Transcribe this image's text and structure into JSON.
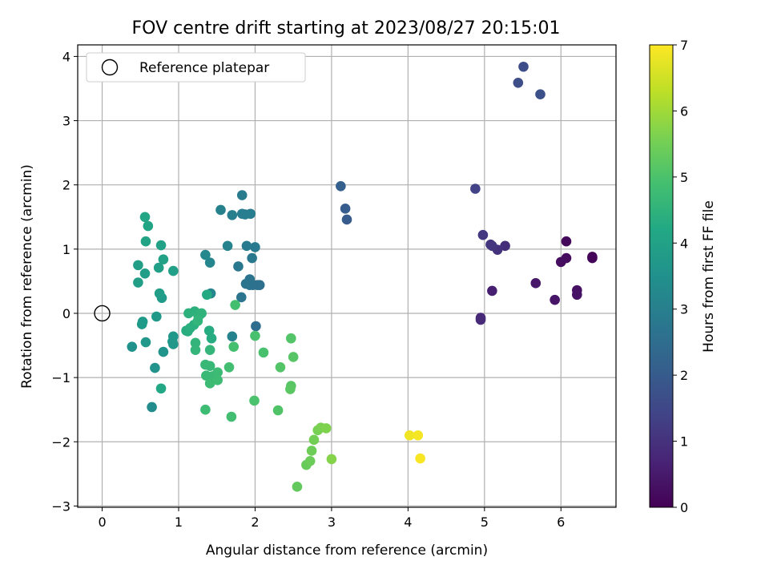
{
  "chart_data": {
    "type": "scatter",
    "title": "FOV centre drift starting at 2023/08/27 20:15:01",
    "xlabel": "Angular distance from reference (arcmin)",
    "ylabel": "Rotation from reference (arcmin)",
    "xlim": [
      -0.32,
      6.72
    ],
    "ylim": [
      -3.02,
      4.18
    ],
    "xticks": [
      0,
      1,
      2,
      3,
      4,
      5,
      6
    ],
    "yticks": [
      -3,
      -2,
      -1,
      0,
      1,
      2,
      3,
      4
    ],
    "grid": true,
    "colormap": "viridis",
    "colorbar": {
      "label": "Hours from first FF file",
      "range": [
        0,
        7
      ],
      "ticks": [
        0,
        1,
        2,
        3,
        4,
        5,
        6,
        7
      ]
    },
    "legend": {
      "position": "top-left",
      "entries": [
        "Reference platepar"
      ]
    },
    "reference_point": {
      "x": 0,
      "y": 0
    },
    "points": [
      {
        "x": 6.41,
        "y": 0.88,
        "hours": 0.05
      },
      {
        "x": 6.41,
        "y": 0.86,
        "hours": 0.1
      },
      {
        "x": 6.07,
        "y": 1.12,
        "hours": 0.15
      },
      {
        "x": 6.07,
        "y": 0.86,
        "hours": 0.2
      },
      {
        "x": 6.0,
        "y": 0.8,
        "hours": 0.25
      },
      {
        "x": 6.21,
        "y": 0.36,
        "hours": 0.3
      },
      {
        "x": 6.21,
        "y": 0.29,
        "hours": 0.35
      },
      {
        "x": 5.92,
        "y": 0.21,
        "hours": 0.4
      },
      {
        "x": 5.67,
        "y": 0.47,
        "hours": 0.45
      },
      {
        "x": 5.1,
        "y": 0.35,
        "hours": 0.6
      },
      {
        "x": 4.95,
        "y": -0.07,
        "hours": 0.8
      },
      {
        "x": 4.95,
        "y": -0.1,
        "hours": 0.85
      },
      {
        "x": 5.27,
        "y": 1.05,
        "hours": 0.9
      },
      {
        "x": 5.17,
        "y": 0.99,
        "hours": 1.0
      },
      {
        "x": 5.08,
        "y": 1.07,
        "hours": 1.05
      },
      {
        "x": 5.1,
        "y": 1.05,
        "hours": 1.1
      },
      {
        "x": 4.98,
        "y": 1.22,
        "hours": 1.15
      },
      {
        "x": 4.88,
        "y": 1.94,
        "hours": 1.35
      },
      {
        "x": 5.51,
        "y": 3.84,
        "hours": 1.6
      },
      {
        "x": 5.44,
        "y": 3.59,
        "hours": 1.65
      },
      {
        "x": 5.73,
        "y": 3.41,
        "hours": 1.7
      },
      {
        "x": 3.2,
        "y": 1.46,
        "hours": 2.0
      },
      {
        "x": 3.18,
        "y": 1.63,
        "hours": 2.05
      },
      {
        "x": 3.12,
        "y": 1.98,
        "hours": 2.1
      },
      {
        "x": 2.01,
        "y": -0.2,
        "hours": 2.5
      },
      {
        "x": 2.06,
        "y": 0.44,
        "hours": 2.55
      },
      {
        "x": 2.03,
        "y": 0.44,
        "hours": 2.6
      },
      {
        "x": 1.93,
        "y": 0.44,
        "hours": 2.65
      },
      {
        "x": 1.97,
        "y": 0.44,
        "hours": 2.6
      },
      {
        "x": 1.93,
        "y": 0.53,
        "hours": 2.7
      },
      {
        "x": 1.88,
        "y": 0.46,
        "hours": 2.7
      },
      {
        "x": 1.82,
        "y": 0.25,
        "hours": 2.75
      },
      {
        "x": 1.78,
        "y": 0.73,
        "hours": 2.8
      },
      {
        "x": 1.96,
        "y": 0.86,
        "hours": 2.8
      },
      {
        "x": 2.0,
        "y": 1.03,
        "hours": 2.85
      },
      {
        "x": 1.89,
        "y": 1.05,
        "hours": 2.85
      },
      {
        "x": 1.83,
        "y": 1.84,
        "hours": 2.9
      },
      {
        "x": 1.87,
        "y": 1.54,
        "hours": 2.9
      },
      {
        "x": 1.94,
        "y": 1.55,
        "hours": 2.95
      },
      {
        "x": 1.83,
        "y": 1.55,
        "hours": 2.95
      },
      {
        "x": 1.7,
        "y": 1.53,
        "hours": 3.0
      },
      {
        "x": 1.55,
        "y": 1.61,
        "hours": 3.05
      },
      {
        "x": 1.64,
        "y": 1.05,
        "hours": 3.1
      },
      {
        "x": 1.7,
        "y": -0.36,
        "hours": 3.1
      },
      {
        "x": 1.42,
        "y": 0.31,
        "hours": 3.15
      },
      {
        "x": 1.41,
        "y": 0.79,
        "hours": 3.2
      },
      {
        "x": 1.35,
        "y": 0.91,
        "hours": 3.25
      },
      {
        "x": 0.65,
        "y": -1.46,
        "hours": 3.4
      },
      {
        "x": 0.39,
        "y": -0.52,
        "hours": 3.5
      },
      {
        "x": 0.69,
        "y": -0.85,
        "hours": 3.55
      },
      {
        "x": 0.8,
        "y": -0.6,
        "hours": 3.6
      },
      {
        "x": 0.92,
        "y": -0.44,
        "hours": 3.65
      },
      {
        "x": 0.93,
        "y": -0.36,
        "hours": 3.65
      },
      {
        "x": 0.93,
        "y": -0.48,
        "hours": 3.7
      },
      {
        "x": 0.57,
        "y": -0.45,
        "hours": 3.7
      },
      {
        "x": 0.71,
        "y": -0.05,
        "hours": 3.75
      },
      {
        "x": 0.53,
        "y": -0.13,
        "hours": 3.75
      },
      {
        "x": 0.52,
        "y": -0.17,
        "hours": 3.8
      },
      {
        "x": 0.78,
        "y": 0.24,
        "hours": 3.8
      },
      {
        "x": 0.75,
        "y": 0.31,
        "hours": 3.85
      },
      {
        "x": 0.56,
        "y": 0.62,
        "hours": 3.85
      },
      {
        "x": 0.47,
        "y": 0.48,
        "hours": 3.9
      },
      {
        "x": 0.47,
        "y": 0.75,
        "hours": 3.9
      },
      {
        "x": 0.74,
        "y": 0.71,
        "hours": 3.95
      },
      {
        "x": 0.93,
        "y": 0.66,
        "hours": 3.95
      },
      {
        "x": 0.8,
        "y": 0.84,
        "hours": 4.0
      },
      {
        "x": 0.77,
        "y": 1.06,
        "hours": 4.0
      },
      {
        "x": 0.57,
        "y": 1.12,
        "hours": 4.05
      },
      {
        "x": 0.6,
        "y": 1.36,
        "hours": 4.1
      },
      {
        "x": 0.56,
        "y": 1.5,
        "hours": 4.15
      },
      {
        "x": 0.77,
        "y": -1.17,
        "hours": 4.2
      },
      {
        "x": 1.37,
        "y": 0.29,
        "hours": 4.25
      },
      {
        "x": 1.4,
        "y": -0.27,
        "hours": 4.3
      },
      {
        "x": 1.43,
        "y": -0.39,
        "hours": 4.3
      },
      {
        "x": 1.1,
        "y": -0.27,
        "hours": 4.35
      },
      {
        "x": 1.12,
        "y": -0.28,
        "hours": 4.35
      },
      {
        "x": 1.2,
        "y": -0.18,
        "hours": 4.4
      },
      {
        "x": 1.15,
        "y": -0.23,
        "hours": 4.4
      },
      {
        "x": 1.13,
        "y": 0.0,
        "hours": 4.45
      },
      {
        "x": 1.21,
        "y": 0.03,
        "hours": 4.45
      },
      {
        "x": 1.26,
        "y": -0.05,
        "hours": 4.5
      },
      {
        "x": 1.3,
        "y": 0.0,
        "hours": 4.5
      },
      {
        "x": 1.25,
        "y": -0.12,
        "hours": 4.55
      },
      {
        "x": 1.22,
        "y": -0.46,
        "hours": 4.55
      },
      {
        "x": 1.22,
        "y": -0.57,
        "hours": 4.6
      },
      {
        "x": 1.41,
        "y": -0.57,
        "hours": 4.6
      },
      {
        "x": 1.35,
        "y": -0.8,
        "hours": 4.65
      },
      {
        "x": 1.41,
        "y": -0.82,
        "hours": 4.65
      },
      {
        "x": 1.36,
        "y": -0.97,
        "hours": 4.7
      },
      {
        "x": 1.44,
        "y": -0.98,
        "hours": 4.7
      },
      {
        "x": 1.41,
        "y": -1.09,
        "hours": 4.75
      },
      {
        "x": 1.51,
        "y": -0.92,
        "hours": 4.75
      },
      {
        "x": 1.51,
        "y": -1.04,
        "hours": 4.8
      },
      {
        "x": 1.35,
        "y": -1.5,
        "hours": 4.8
      },
      {
        "x": 1.69,
        "y": -1.61,
        "hours": 4.85
      },
      {
        "x": 1.66,
        "y": -0.84,
        "hours": 4.85
      },
      {
        "x": 1.72,
        "y": -0.52,
        "hours": 4.9
      },
      {
        "x": 1.74,
        "y": 0.13,
        "hours": 4.9
      },
      {
        "x": 2.0,
        "y": -0.35,
        "hours": 4.95
      },
      {
        "x": 2.11,
        "y": -0.61,
        "hours": 4.95
      },
      {
        "x": 1.99,
        "y": -1.36,
        "hours": 5.0
      },
      {
        "x": 2.3,
        "y": -1.51,
        "hours": 5.05
      },
      {
        "x": 2.33,
        "y": -0.84,
        "hours": 5.1
      },
      {
        "x": 2.47,
        "y": -0.39,
        "hours": 5.1
      },
      {
        "x": 2.5,
        "y": -0.68,
        "hours": 5.15
      },
      {
        "x": 2.47,
        "y": -1.13,
        "hours": 5.15
      },
      {
        "x": 2.46,
        "y": -1.18,
        "hours": 5.2
      },
      {
        "x": 2.55,
        "y": -2.7,
        "hours": 5.3
      },
      {
        "x": 2.67,
        "y": -2.36,
        "hours": 5.35
      },
      {
        "x": 2.72,
        "y": -2.3,
        "hours": 5.4
      },
      {
        "x": 2.74,
        "y": -2.14,
        "hours": 5.45
      },
      {
        "x": 2.77,
        "y": -1.97,
        "hours": 5.5
      },
      {
        "x": 2.82,
        "y": -1.82,
        "hours": 5.55
      },
      {
        "x": 2.86,
        "y": -1.78,
        "hours": 5.6
      },
      {
        "x": 2.93,
        "y": -1.79,
        "hours": 5.65
      },
      {
        "x": 3.0,
        "y": -2.27,
        "hours": 5.7
      },
      {
        "x": 4.02,
        "y": -1.9,
        "hours": 6.85
      },
      {
        "x": 4.13,
        "y": -1.9,
        "hours": 6.9
      },
      {
        "x": 4.16,
        "y": -2.26,
        "hours": 6.95
      }
    ]
  }
}
